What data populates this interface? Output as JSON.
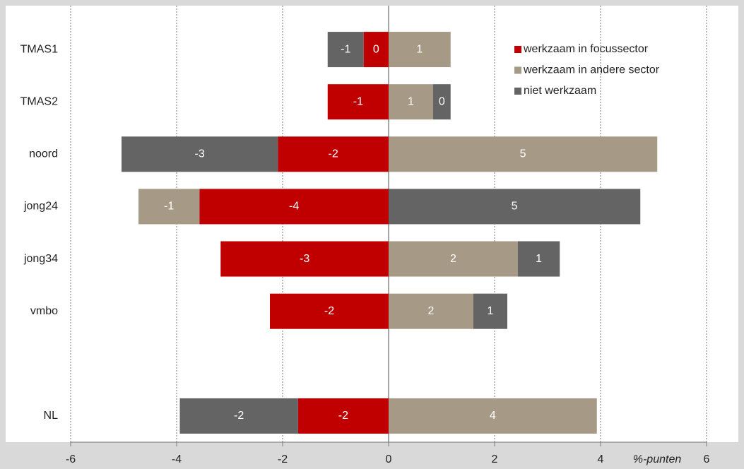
{
  "chart_data": {
    "type": "bar",
    "orientation": "horizontal",
    "stacked": true,
    "categories": [
      "TMAS1",
      "TMAS2",
      "noord",
      "jong24",
      "jong34",
      "vmbo",
      null,
      "NL"
    ],
    "series": [
      {
        "name": "werkzaam in focussector",
        "color": "#c00000",
        "values": [
          -0.47,
          -1.15,
          -2.09,
          -3.57,
          -3.17,
          -2.24,
          null,
          -1.71
        ],
        "value_labels": [
          "0",
          "-1",
          "-2",
          "-4",
          "-3",
          "-2",
          null,
          "-2"
        ]
      },
      {
        "name": "werkzaam in andere sector",
        "color": "#a69a87",
        "values": [
          1.17,
          0.84,
          5.07,
          -1.15,
          2.44,
          1.6,
          null,
          3.93
        ],
        "value_labels": [
          "1",
          "1",
          "5",
          "-1",
          "2",
          "2",
          null,
          "4"
        ]
      },
      {
        "name": "niet werkzaam",
        "color": "#646464",
        "values": [
          -0.68,
          0.33,
          -2.95,
          4.75,
          0.79,
          0.64,
          null,
          -2.23
        ],
        "value_labels": [
          "-1",
          "0",
          "-3",
          "5",
          "1",
          "1",
          null,
          "-2"
        ]
      }
    ],
    "xlabel": "%-punten",
    "xlim": [
      -6,
      6
    ],
    "xticks": [
      -6,
      -4,
      -2,
      0,
      2,
      4,
      6
    ],
    "grid": true,
    "legend": "top-right"
  }
}
